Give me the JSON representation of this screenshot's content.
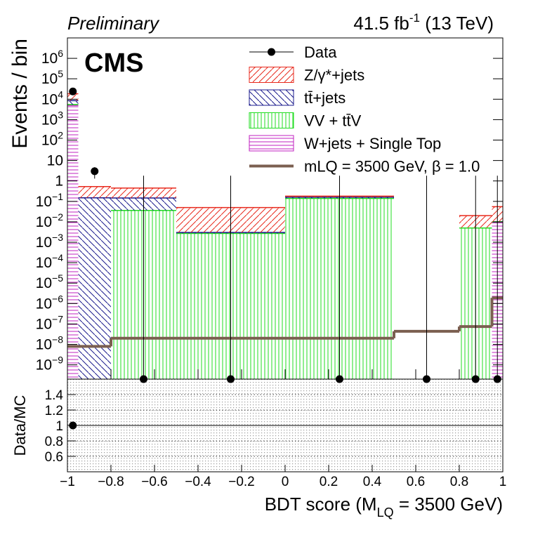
{
  "chart_data": {
    "type": "histogram",
    "title": "Preliminary",
    "lumi": "41.5 fb",
    "lumi_sup": "-1",
    "lumi_end": " (13 TeV)",
    "label": "CMS",
    "ylabel": "Events / bin",
    "xlabel": "BDT score (M",
    "xlabel_sub": "LQ",
    "xlabel_end": " = 3500 GeV)",
    "bins": [
      -1,
      -0.95,
      -0.8,
      -0.5,
      0,
      0.5,
      0.8,
      0.95,
      1
    ],
    "xlim": [
      -1,
      1
    ],
    "xticks": [
      {
        "value": -1,
        "label": "−1"
      },
      {
        "value": -0.8,
        "label": "−0.8"
      },
      {
        "value": -0.6,
        "label": "−0.6"
      },
      {
        "value": -0.4,
        "label": "−0.4"
      },
      {
        "value": -0.2,
        "label": "−0.2"
      },
      0,
      0.2,
      0.4,
      0.6,
      0.8,
      1
    ],
    "log_y": true,
    "ylim": [
      2e-10,
      10000000
    ],
    "yticks": [
      {
        "value": 1e-09,
        "label": "10",
        "sup": "−9"
      },
      {
        "value": 1e-08,
        "label": "10",
        "sup": "−8"
      },
      {
        "value": 1e-07,
        "label": "10",
        "sup": "−7"
      },
      {
        "value": 1e-06,
        "label": "10",
        "sup": "−6"
      },
      {
        "value": 1e-05,
        "label": "10",
        "sup": "−5"
      },
      {
        "value": 0.0001,
        "label": "10",
        "sup": "−4"
      },
      {
        "value": 0.001,
        "label": "10",
        "sup": "−3"
      },
      {
        "value": 0.01,
        "label": "10",
        "sup": "−2"
      },
      {
        "value": 0.1,
        "label": "10",
        "sup": "−1"
      },
      1,
      10,
      {
        "value": 100,
        "label": "10",
        "sup": "2"
      },
      {
        "value": 1000,
        "label": "10",
        "sup": "3"
      },
      {
        "value": 10000,
        "label": "10",
        "sup": "4"
      },
      {
        "value": 100000,
        "label": "10",
        "sup": "5"
      },
      {
        "value": 1000000,
        "label": "10",
        "sup": "6"
      }
    ],
    "series": [
      {
        "name": "Data",
        "style": "points",
        "color": "#000000",
        "values": [
          24000,
          3,
          0,
          0,
          0,
          0,
          0,
          0
        ],
        "errors": [
          155,
          1.7,
          1.8,
          1.8,
          1.8,
          1.8,
          1.8,
          1.8
        ]
      },
      {
        "name": "Z/γ*+jets",
        "style": "hatch",
        "hatch": "/",
        "color": "#e8291c",
        "values": [
          10000,
          0.38,
          0.3,
          0.047,
          0.02,
          0,
          0.015,
          0.045
        ]
      },
      {
        "name": "tt̄+jets",
        "style": "hatch",
        "hatch": "\\",
        "color": "#1a1a8c",
        "values": [
          3000,
          0.15,
          0.11,
          0.0003,
          0.02,
          0,
          0,
          0
        ]
      },
      {
        "name": "VV + tt̄V",
        "style": "hatch",
        "hatch": "|",
        "color": "#22dd22",
        "values": [
          500,
          0,
          0.036,
          0.0027,
          0.14,
          0,
          0.005,
          0.001
        ]
      },
      {
        "name": "W+jets + Single Top",
        "style": "hatch",
        "hatch": "-",
        "color": "#c020c0",
        "values": [
          5000,
          0,
          0,
          0,
          0,
          0,
          0,
          0.009
        ]
      },
      {
        "name": "mLQ = 3500 GeV, β = 1.0",
        "style": "step",
        "color": "#7b5f50",
        "values": [
          8e-09,
          8e-09,
          2e-08,
          2e-08,
          2e-08,
          4.4e-08,
          7.5e-08,
          1.9e-06
        ]
      }
    ],
    "ratio": {
      "ylabel": "Data/MC",
      "ylim": [
        0.4,
        1.6
      ],
      "yticks": [
        0.6,
        0.8,
        1,
        1.2,
        1.4
      ],
      "reference": 1,
      "values": [
        1,
        null,
        null,
        null,
        null,
        null,
        null,
        null
      ]
    }
  }
}
